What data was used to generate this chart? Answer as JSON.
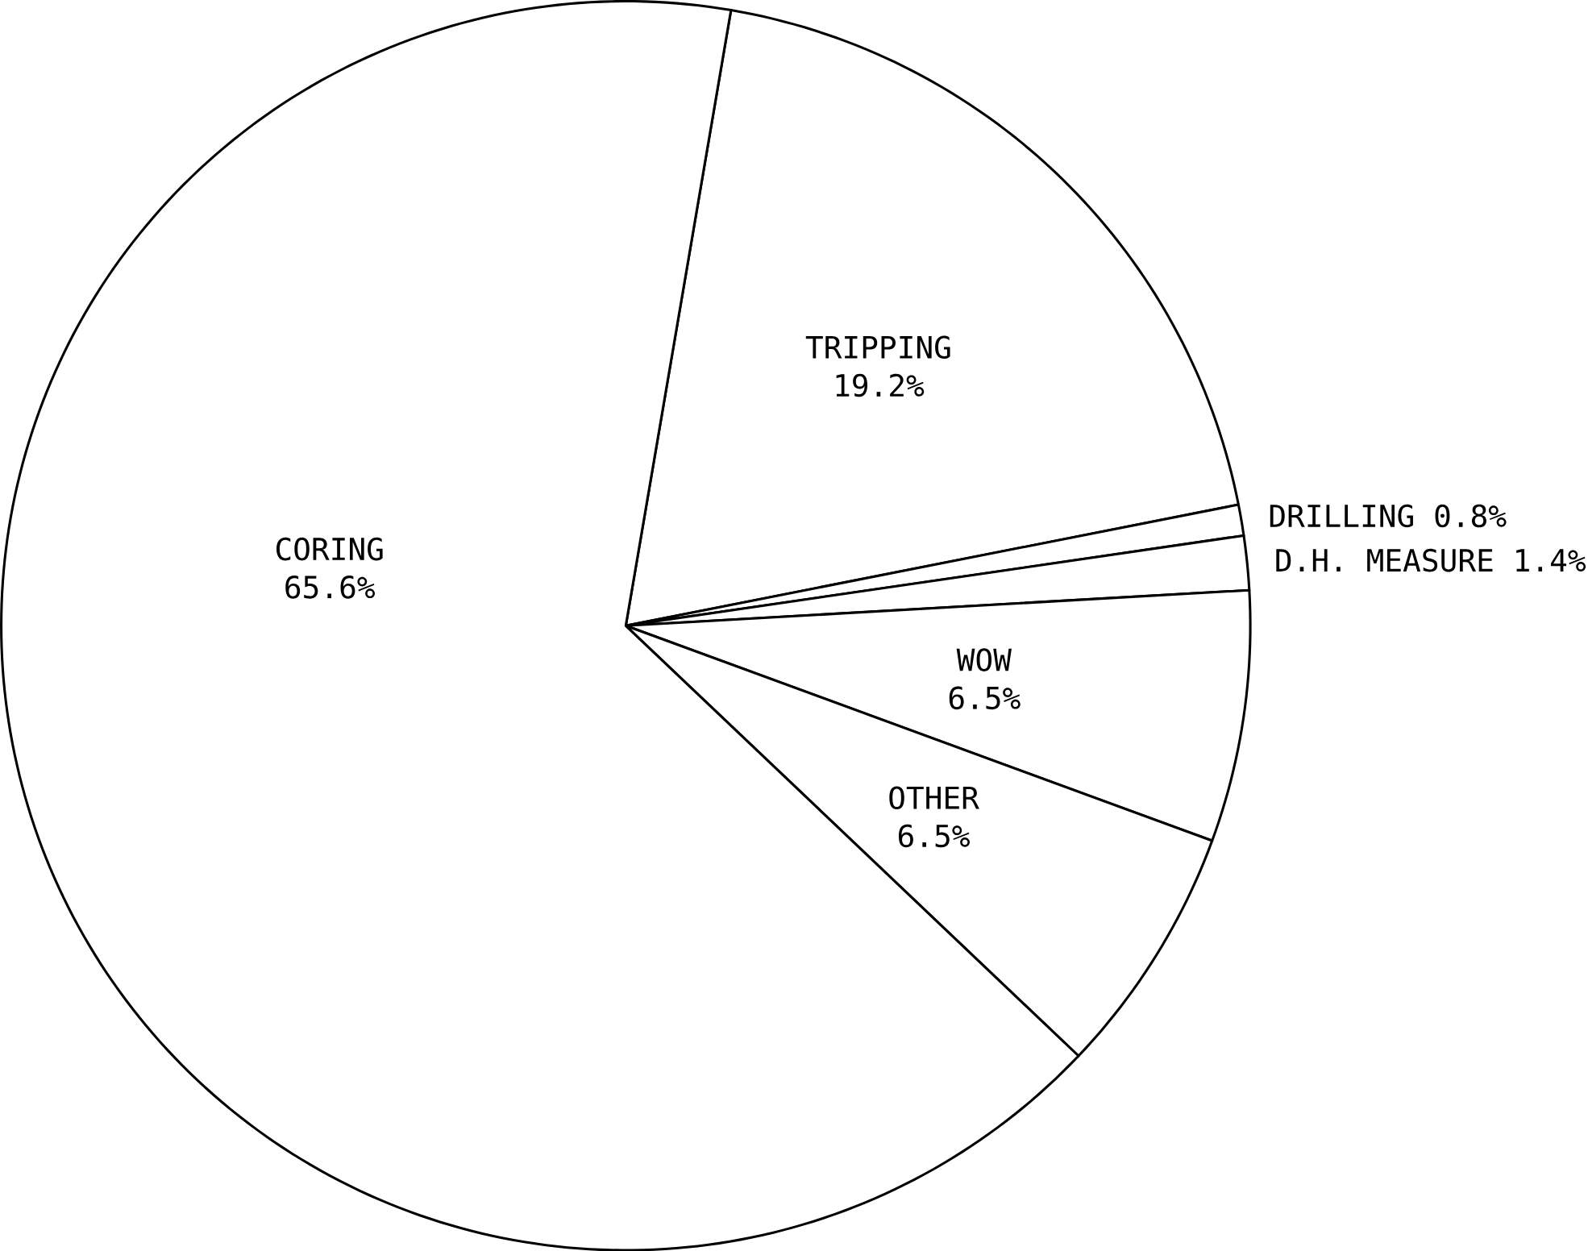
{
  "chart_data": {
    "type": "pie",
    "categories": [
      "TRIPPING",
      "DRILLING",
      "D.H. MEASURE",
      "WOW",
      "OTHER",
      "CORING"
    ],
    "values": [
      19.2,
      0.8,
      1.4,
      6.5,
      6.5,
      65.6
    ],
    "colors": [
      "#ffffff",
      "#ffffff",
      "#ffffff",
      "#ffffff",
      "#ffffff",
      "#ffffff"
    ],
    "value_labels": [
      "19.2%",
      "0.8%",
      "1.4%",
      "6.5%",
      "6.5%",
      "65.6%"
    ]
  }
}
